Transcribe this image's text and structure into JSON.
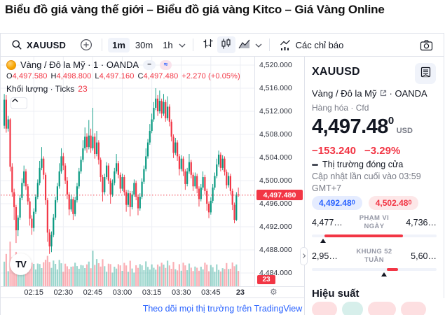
{
  "page_title": "Biểu đồ giá vàng thế giới – Biểu đồ giá vàng Kitco – Giá Vàng Online",
  "toolbar": {
    "symbol": "XAUUSD",
    "intervals": [
      {
        "label": "1m",
        "active": true
      },
      {
        "label": "30m",
        "active": false
      },
      {
        "label": "1h",
        "active": false
      }
    ],
    "indicators_label": "Các chỉ báo"
  },
  "legend": {
    "title": "Vàng / Đô la Mỹ · 1 · OANDA",
    "hide_button": "−",
    "wave_button": "≈",
    "ohlc": [
      {
        "label": "O",
        "value": "4,497.580"
      },
      {
        "label": "H",
        "value": "4,498.800"
      },
      {
        "label": "L",
        "value": "4,497.160"
      },
      {
        "label": "C",
        "value": "4,497.480"
      }
    ],
    "change": "+2.270 (+0.05%)",
    "volume_label": "Khối lượng · Ticks",
    "volume_value": "23"
  },
  "price_axis": {
    "labels": [
      "4,520.000",
      "4,516.000",
      "4,512.000",
      "4,508.000",
      "4,504.000",
      "4,500.000",
      "4,496.000",
      "4,492.000",
      "4,488.000",
      "4,484.000"
    ],
    "last_price_badge": "4,497.480",
    "volume_badge": "23"
  },
  "time_axis": {
    "labels": [
      "02:15",
      "02:30",
      "02:45",
      "03:00",
      "03:15",
      "03:30",
      "03:45",
      "23"
    ]
  },
  "footer": {
    "link": "Theo dõi mọi thị trường trên TradingView"
  },
  "panel": {
    "symbol": "XAUUSD",
    "name": "Vàng / Đô la Mỹ",
    "exchange_suffix": "·  OANDA",
    "type_line": "Hàng hóa · Cfd",
    "price": "4,497.48",
    "price_sup": "0",
    "currency": "USD",
    "change_abs": "−153.240",
    "change_pct": "−3.29%",
    "market_status": "Thị trường đóng cửa",
    "updated_line1": "Cập nhật lần cuối vào 03:59",
    "updated_line2": "GMT+7",
    "bid": {
      "value": "4,492.48",
      "sup": "0"
    },
    "ask": {
      "value": "4,502.48",
      "sup": "0"
    },
    "day_range": {
      "label": "PHẠM VI NGÀY",
      "low": "4,477…",
      "high": "4,736…",
      "fill_start_pct": 10,
      "fill_end_pct": 73,
      "marker_pct": 9
    },
    "week52_range": {
      "label": "KHUNG 52 TUẦN",
      "low": "2,95…",
      "high": "5,60…",
      "fill_start_pct": 60,
      "fill_end_pct": 69,
      "marker_pct": 58
    },
    "performance_label": "Hiệu suất",
    "performance_chips": [
      {
        "tone": "down"
      },
      {
        "tone": "up"
      },
      {
        "tone": "down"
      },
      {
        "tone": "down"
      }
    ]
  },
  "chart_data": {
    "type": "candlestick",
    "symbol": "XAUUSD",
    "exchange": "OANDA",
    "interval": "1m",
    "session_start": "02:00",
    "session_end": "03:59",
    "price_min": 4484,
    "price_max": 4520,
    "grid_step": 4,
    "last_price": 4497.48,
    "candles": [
      [
        4509.5,
        4515.0,
        4509.0,
        4514.0
      ],
      [
        4514.0,
        4514.8,
        4508.3,
        4509.0
      ],
      [
        4509.0,
        4511.2,
        4508.5,
        4510.6
      ],
      [
        4510.6,
        4510.8,
        4501.6,
        4502.4
      ],
      [
        4502.4,
        4503.0,
        4497.2,
        4498.0
      ],
      [
        4498.0,
        4498.6,
        4493.2,
        4495.4
      ],
      [
        4495.4,
        4495.8,
        4489.2,
        4491.4
      ],
      [
        4491.4,
        4494.0,
        4490.4,
        4493.6
      ],
      [
        4493.6,
        4497.5,
        4493.2,
        4497.0
      ],
      [
        4497.0,
        4500.4,
        4496.6,
        4499.6
      ],
      [
        4499.6,
        4502.6,
        4499.0,
        4501.6
      ],
      [
        4501.6,
        4502.0,
        4498.4,
        4499.0
      ],
      [
        4499.0,
        4499.4,
        4495.8,
        4496.4
      ],
      [
        4496.4,
        4497.0,
        4492.2,
        4493.4
      ],
      [
        4493.4,
        4494.0,
        4490.6,
        4491.8
      ],
      [
        4491.8,
        4495.2,
        4491.2,
        4494.6
      ],
      [
        4494.6,
        4497.6,
        4494.2,
        4497.2
      ],
      [
        4497.2,
        4500.2,
        4496.8,
        4499.6
      ],
      [
        4499.6,
        4503.4,
        4499.2,
        4502.2
      ],
      [
        4502.2,
        4505.8,
        4501.8,
        4503.8
      ],
      [
        4503.8,
        4504.2,
        4500.2,
        4501.0
      ],
      [
        4501.0,
        4501.4,
        4495.8,
        4496.6
      ],
      [
        4496.6,
        4497.0,
        4489.4,
        4491.0
      ],
      [
        4491.0,
        4491.6,
        4487.3,
        4488.6
      ],
      [
        4488.6,
        4491.2,
        4487.6,
        4490.6
      ],
      [
        4490.6,
        4494.2,
        4490.2,
        4493.6
      ],
      [
        4493.6,
        4497.2,
        4493.2,
        4496.6
      ],
      [
        4496.6,
        4499.6,
        4496.2,
        4499.0
      ],
      [
        4499.0,
        4503.0,
        4498.6,
        4501.6
      ],
      [
        4501.6,
        4505.6,
        4501.2,
        4504.2
      ],
      [
        4504.2,
        4504.8,
        4501.8,
        4502.6
      ],
      [
        4502.6,
        4503.0,
        4499.4,
        4500.0
      ],
      [
        4500.0,
        4500.6,
        4496.8,
        4497.6
      ],
      [
        4497.6,
        4498.0,
        4494.0,
        4495.0
      ],
      [
        4495.0,
        4497.6,
        4494.6,
        4496.8
      ],
      [
        4496.8,
        4497.2,
        4493.2,
        4494.2
      ],
      [
        4494.2,
        4497.2,
        4493.8,
        4496.6
      ],
      [
        4496.6,
        4499.6,
        4496.2,
        4499.0
      ],
      [
        4499.0,
        4502.2,
        4498.6,
        4501.6
      ],
      [
        4501.6,
        4504.2,
        4501.2,
        4503.6
      ],
      [
        4503.6,
        4507.0,
        4503.2,
        4505.6
      ],
      [
        4505.6,
        4509.2,
        4505.2,
        4507.6
      ],
      [
        4507.6,
        4508.2,
        4504.8,
        4505.8
      ],
      [
        4505.8,
        4510.5,
        4505.4,
        4507.8
      ],
      [
        4507.8,
        4509.0,
        4504.8,
        4505.6
      ],
      [
        4505.6,
        4512.6,
        4505.2,
        4507.6
      ],
      [
        4507.6,
        4508.2,
        4503.8,
        4504.6
      ],
      [
        4504.6,
        4508.6,
        4504.2,
        4506.6
      ],
      [
        4506.6,
        4507.0,
        4502.8,
        4503.6
      ],
      [
        4503.6,
        4504.0,
        4499.8,
        4500.6
      ],
      [
        4500.6,
        4501.0,
        4496.4,
        4498.0
      ],
      [
        4498.0,
        4501.2,
        4497.6,
        4500.6
      ],
      [
        4500.6,
        4503.2,
        4500.2,
        4502.6
      ],
      [
        4502.6,
        4503.0,
        4499.4,
        4500.0
      ],
      [
        4500.0,
        4500.4,
        4496.0,
        4497.6
      ],
      [
        4497.6,
        4500.2,
        4497.2,
        4499.6
      ],
      [
        4499.6,
        4502.2,
        4499.2,
        4501.6
      ],
      [
        4501.6,
        4504.6,
        4501.2,
        4503.0
      ],
      [
        4503.0,
        4503.4,
        4500.4,
        4501.0
      ],
      [
        4501.0,
        4501.4,
        4497.8,
        4498.6
      ],
      [
        4498.6,
        4501.2,
        4498.2,
        4500.6
      ],
      [
        4500.6,
        4501.0,
        4497.4,
        4498.0
      ],
      [
        4498.0,
        4498.4,
        4494.6,
        4495.8
      ],
      [
        4495.8,
        4498.4,
        4495.4,
        4497.8
      ],
      [
        4497.8,
        4498.2,
        4493.8,
        4495.4
      ],
      [
        4495.4,
        4498.2,
        4495.0,
        4497.6
      ],
      [
        4497.6,
        4500.2,
        4497.2,
        4499.6
      ],
      [
        4499.6,
        4500.0,
        4496.6,
        4497.2
      ],
      [
        4497.2,
        4497.6,
        4494.0,
        4495.2
      ],
      [
        4495.2,
        4497.8,
        4494.8,
        4497.2
      ],
      [
        4497.2,
        4500.4,
        4496.8,
        4499.8
      ],
      [
        4499.8,
        4502.6,
        4499.4,
        4502.0
      ],
      [
        4502.0,
        4505.6,
        4501.6,
        4504.2
      ],
      [
        4504.2,
        4507.2,
        4503.8,
        4506.6
      ],
      [
        4506.6,
        4509.8,
        4506.2,
        4508.6
      ],
      [
        4508.6,
        4511.6,
        4508.2,
        4510.6
      ],
      [
        4510.6,
        4513.6,
        4510.2,
        4512.6
      ],
      [
        4512.6,
        4516.0,
        4512.2,
        4514.2
      ],
      [
        4514.2,
        4514.8,
        4511.2,
        4512.0
      ],
      [
        4512.0,
        4515.6,
        4511.6,
        4513.8
      ],
      [
        4513.8,
        4514.2,
        4510.8,
        4511.6
      ],
      [
        4511.6,
        4515.0,
        4511.2,
        4513.6
      ],
      [
        4513.6,
        4514.0,
        4510.2,
        4510.8
      ],
      [
        4510.8,
        4514.6,
        4510.4,
        4512.8
      ],
      [
        4512.8,
        4513.2,
        4509.4,
        4510.2
      ],
      [
        4510.2,
        4510.6,
        4506.8,
        4507.6
      ],
      [
        4507.6,
        4508.0,
        4503.9,
        4504.8
      ],
      [
        4504.8,
        4507.4,
        4504.4,
        4506.6
      ],
      [
        4506.6,
        4507.0,
        4503.4,
        4504.2
      ],
      [
        4504.2,
        4504.6,
        4500.9,
        4502.0
      ],
      [
        4502.0,
        4504.4,
        4501.6,
        4503.8
      ],
      [
        4503.8,
        4504.2,
        4500.8,
        4501.6
      ],
      [
        4501.6,
        4502.0,
        4498.4,
        4499.4
      ],
      [
        4499.4,
        4502.2,
        4499.0,
        4501.6
      ],
      [
        4501.6,
        4504.6,
        4501.2,
        4503.2
      ],
      [
        4503.2,
        4503.6,
        4500.4,
        4501.0
      ],
      [
        4501.0,
        4501.4,
        4498.2,
        4499.0
      ],
      [
        4499.0,
        4501.4,
        4498.6,
        4500.8
      ],
      [
        4500.8,
        4501.2,
        4497.8,
        4498.6
      ],
      [
        4498.6,
        4499.0,
        4495.5,
        4496.8
      ],
      [
        4496.8,
        4499.4,
        4496.4,
        4498.8
      ],
      [
        4498.8,
        4501.6,
        4498.4,
        4500.6
      ],
      [
        4500.6,
        4501.0,
        4497.6,
        4498.2
      ],
      [
        4498.2,
        4498.6,
        4494.8,
        4496.0
      ],
      [
        4496.0,
        4496.4,
        4493.5,
        4494.5
      ],
      [
        4494.5,
        4497.1,
        4494.1,
        4496.5
      ],
      [
        4496.5,
        4499.4,
        4496.1,
        4498.8
      ],
      [
        4498.8,
        4501.4,
        4498.4,
        4500.8
      ],
      [
        4500.8,
        4503.8,
        4500.4,
        4502.8
      ],
      [
        4502.8,
        4505.2,
        4502.4,
        4504.5
      ],
      [
        4504.5,
        4504.9,
        4501.6,
        4502.2
      ],
      [
        4502.2,
        4504.4,
        4501.8,
        4503.8
      ],
      [
        4503.8,
        4504.2,
        4500.9,
        4501.5
      ],
      [
        4501.5,
        4501.9,
        4498.6,
        4499.2
      ],
      [
        4499.2,
        4501.4,
        4498.8,
        4500.8
      ],
      [
        4500.8,
        4501.2,
        4497.6,
        4498.2
      ],
      [
        4498.2,
        4498.6,
        4494.9,
        4495.8
      ],
      [
        4495.8,
        4496.2,
        4492.6,
        4493.2
      ],
      [
        4493.2,
        4498.0,
        4493.0,
        4497.6
      ],
      [
        4497.6,
        4498.8,
        4497.2,
        4497.5
      ]
    ]
  },
  "colors": {
    "up": "#089981",
    "down": "#F23645",
    "accent_blue": "#2962FF",
    "border": "#E0E3EB",
    "text": "#131722",
    "muted": "#787B86",
    "chip_bg": "#F0F3FA",
    "grid": "#EDEFF4"
  }
}
